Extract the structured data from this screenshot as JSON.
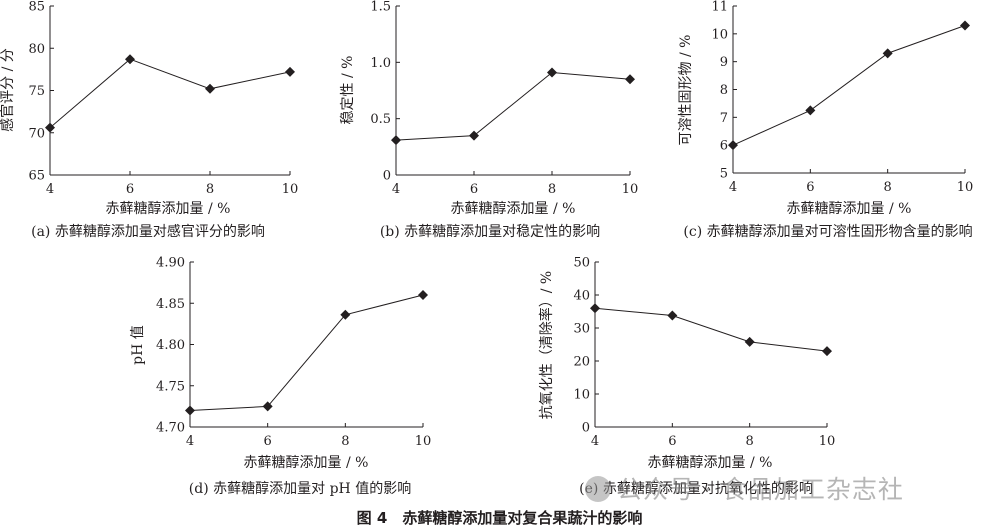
{
  "figure_title": "图 4　赤藓糖醇添加量对复合果蔬汁的影响",
  "watermark": "公众号 · 食品加工杂志社",
  "colors": {
    "line": "#231f20",
    "marker": "#231f20",
    "axis": "#231f20"
  },
  "chart_data": [
    {
      "type": "line",
      "caption": "(a)  赤藓糖醇添加量对感官评分的影响",
      "xlabel": "赤藓糖醇添加量 / %",
      "ylabel": "感官评分 / 分",
      "x": [
        4,
        6,
        8,
        10
      ],
      "y": [
        70.6,
        78.7,
        75.2,
        77.2
      ],
      "xlim": [
        4,
        10
      ],
      "ylim": [
        65,
        85
      ],
      "xticks": [
        4,
        6,
        8,
        10
      ],
      "yticks": [
        65,
        70,
        75,
        80,
        85
      ],
      "ytick_labels": [
        "65",
        "70",
        "75",
        "80",
        "85"
      ],
      "grid": false,
      "marker": "diamond"
    },
    {
      "type": "line",
      "caption": "(b)  赤藓糖醇添加量对稳定性的影响",
      "xlabel": "赤藓糖醇添加量 / %",
      "ylabel": "稳定性 / %",
      "x": [
        4,
        6,
        8,
        10
      ],
      "y": [
        0.31,
        0.35,
        0.91,
        0.85
      ],
      "xlim": [
        4,
        10
      ],
      "ylim": [
        0,
        1.5
      ],
      "xticks": [
        4,
        6,
        8,
        10
      ],
      "yticks": [
        0,
        0.5,
        1.0,
        1.5
      ],
      "ytick_labels": [
        "0",
        "0.5",
        "1.0",
        "1.5"
      ],
      "grid": false,
      "marker": "diamond"
    },
    {
      "type": "line",
      "caption": "(c)  赤藓糖醇添加量对可溶性固形物含量的影响",
      "xlabel": "赤藓糖醇添加量 / %",
      "ylabel": "可溶性固形物 / %",
      "x": [
        4,
        6,
        8,
        10
      ],
      "y": [
        6.0,
        7.25,
        9.3,
        10.3
      ],
      "xlim": [
        4,
        10
      ],
      "ylim": [
        5,
        11
      ],
      "xticks": [
        4,
        6,
        8,
        10
      ],
      "yticks": [
        5,
        6,
        7,
        8,
        9,
        10,
        11
      ],
      "ytick_labels": [
        "5",
        "6",
        "7",
        "8",
        "9",
        "10",
        "11"
      ],
      "grid": false,
      "marker": "diamond"
    },
    {
      "type": "line",
      "caption": "(d)  赤藓糖醇添加量对 pH 值的影响",
      "xlabel": "赤藓糖醇添加量 / %",
      "ylabel": "pH 值",
      "x": [
        4,
        6,
        8,
        10
      ],
      "y": [
        4.72,
        4.725,
        4.836,
        4.86
      ],
      "xlim": [
        4,
        10
      ],
      "ylim": [
        4.7,
        4.9
      ],
      "xticks": [
        4,
        6,
        8,
        10
      ],
      "yticks": [
        4.7,
        4.75,
        4.8,
        4.85,
        4.9
      ],
      "ytick_labels": [
        "4.70",
        "4.75",
        "4.80",
        "4.85",
        "4.90"
      ],
      "grid": false,
      "marker": "diamond"
    },
    {
      "type": "line",
      "caption": "(e)  赤藓糖醇添加量对抗氧化性的影响",
      "xlabel": "赤藓糖醇添加量 / %",
      "ylabel": "抗氧化性（清除率）/ %",
      "x": [
        4,
        6,
        8,
        10
      ],
      "y": [
        36,
        33.8,
        25.8,
        23
      ],
      "xlim": [
        4,
        10
      ],
      "ylim": [
        0,
        50
      ],
      "xticks": [
        4,
        6,
        8,
        10
      ],
      "yticks": [
        0,
        10,
        20,
        30,
        40,
        50
      ],
      "ytick_labels": [
        "0",
        "10",
        "20",
        "30",
        "40",
        "50"
      ],
      "grid": false,
      "marker": "diamond"
    }
  ]
}
